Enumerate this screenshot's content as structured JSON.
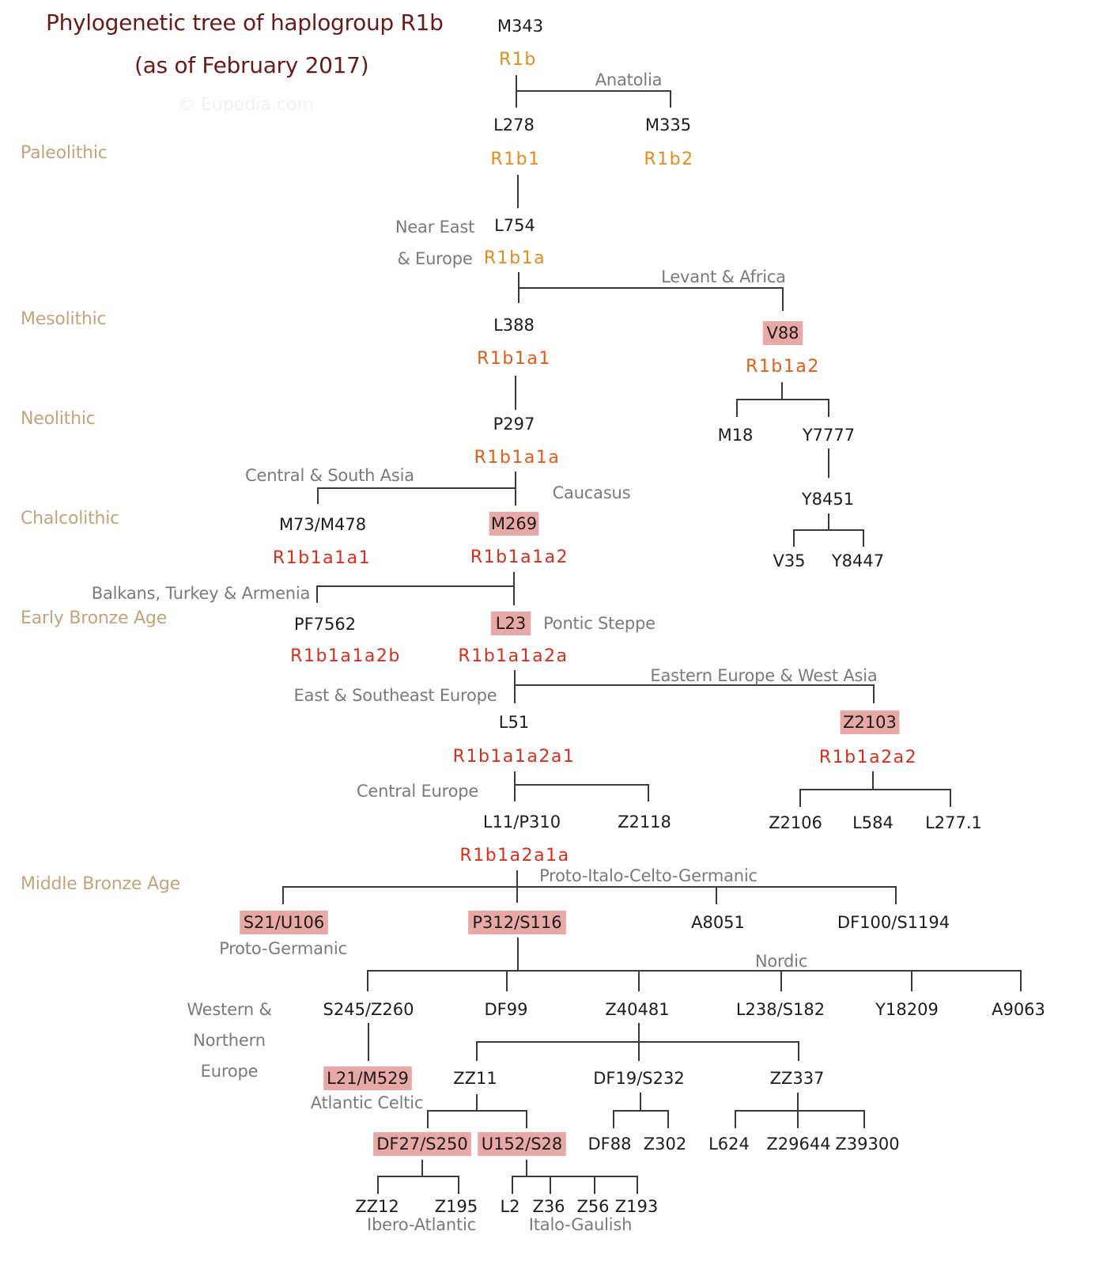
{
  "title_line1": "Phylogenetic tree of haplogroup R1b",
  "title_line2": "(as of February 2017)",
  "watermark": "© Eupedia.com",
  "colors": {
    "title": "#6b1a17",
    "period": "#c4a37a",
    "region": "#7a7a7a",
    "snp": "#1c1c1c",
    "clade_early": "#e88a1a",
    "clade_mid": "#e35b15",
    "clade_late": "#d92d1c",
    "highlight_bg": "#e8a9a6",
    "line": "#3a3a3a"
  },
  "periods": [
    "Paleolithic",
    "Mesolithic",
    "Neolithic",
    "Chalcolithic",
    "Early Bronze Age",
    "Middle Bronze Age"
  ],
  "regions": [
    "Anatolia",
    "Near East",
    "& Europe",
    "Levant & Africa",
    "Central & South Asia",
    "Caucasus",
    "Balkans, Turkey & Armenia",
    "Pontic Steppe",
    "Eastern Europe & West Asia",
    "East & Southeast Europe",
    "Central Europe",
    "Proto-Italo-Celto-Germanic",
    "Proto-Germanic",
    "Nordic",
    "Western &",
    "Northern",
    "Europe",
    "Atlantic Celtic",
    "Ibero-Atlantic",
    "Italo-Gaulish"
  ],
  "snps": [
    "M343",
    "L278",
    "M335",
    "L754",
    "L388",
    "V88",
    "P297",
    "M18",
    "Y7777",
    "Y8451",
    "M73/M478",
    "M269",
    "V35",
    "Y8447",
    "PF7562",
    "L23",
    "L51",
    "Z2103",
    "L11/P310",
    "Z2118",
    "Z2106",
    "L584",
    "L277.1",
    "S21/U106",
    "P312/S116",
    "A8051",
    "DF100/S1194",
    "S245/Z260",
    "DF99",
    "Z40481",
    "L238/S182",
    "Y18209",
    "A9063",
    "L21/M529",
    "ZZ11",
    "DF19/S232",
    "ZZ337",
    "DF27/S250",
    "U152/S28",
    "DF88",
    "Z302",
    "L624",
    "Z29644",
    "Z39300",
    "ZZ12",
    "Z195",
    "L2",
    "Z36",
    "Z56",
    "Z193"
  ],
  "clades": [
    "R1b",
    "R1b1",
    "R1b2",
    "R1b1a",
    "R1b1a1",
    "R1b1a2",
    "R1b1a1a",
    "R1b1a1a1",
    "R1b1a1a2",
    "R1b1a1a2b",
    "R1b1a1a2a",
    "R1b1a1a2a1",
    "R1b1a2a2",
    "R1b1a2a1a"
  ],
  "highlighted": [
    "V88",
    "M269",
    "L23",
    "Z2103",
    "S21/U106",
    "P312/S116",
    "L21/M529",
    "DF27/S250",
    "U152/S28"
  ]
}
